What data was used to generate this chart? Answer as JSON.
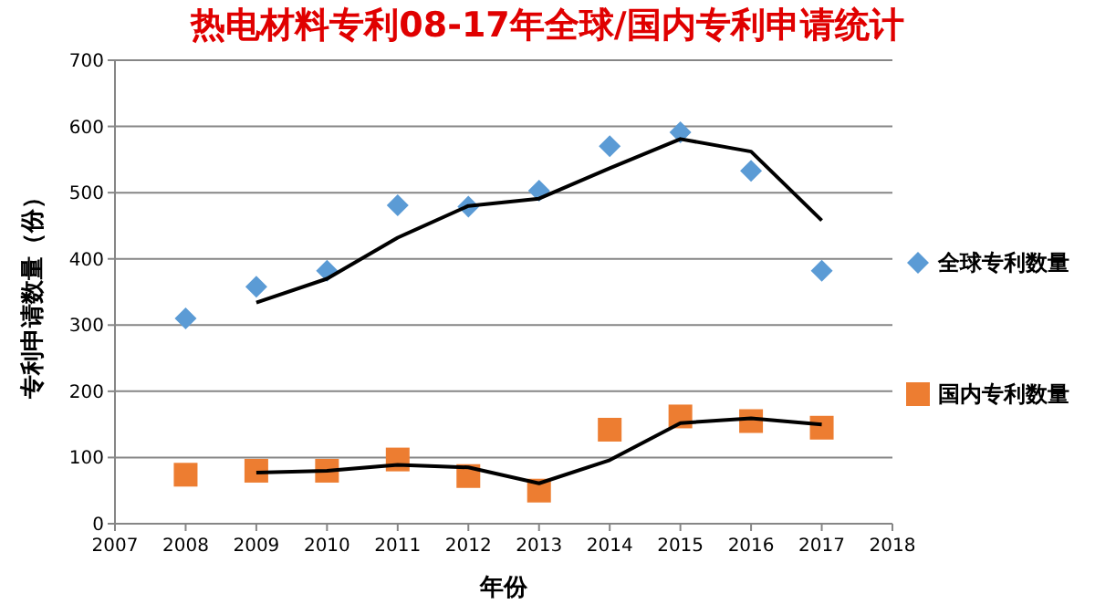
{
  "chart_data": {
    "type": "scatter",
    "title": "热电材料专利08-17年全球/国内专利申请统计",
    "xlabel": "年份",
    "ylabel": "专利申请数量（份）",
    "x": [
      2008,
      2009,
      2010,
      2011,
      2012,
      2013,
      2014,
      2015,
      2016,
      2017
    ],
    "series": [
      {
        "name": "全球专利数量",
        "color": "#5b9bd5",
        "marker": "diamond",
        "values": [
          310,
          358,
          382,
          481,
          479,
          503,
          570,
          591,
          533,
          382
        ]
      },
      {
        "name": "国内专利数量",
        "color": "#ed7d31",
        "marker": "square",
        "values": [
          74,
          80,
          80,
          97,
          72,
          50,
          142,
          162,
          155,
          145
        ]
      },
      {
        "type": "line",
        "color": "#000000",
        "x": [
          2009,
          2010,
          2011,
          2012,
          2013,
          2014,
          2015,
          2016,
          2017
        ],
        "values": [
          334,
          370,
          432,
          480,
          491,
          537,
          581,
          562,
          458
        ]
      },
      {
        "type": "line",
        "color": "#000000",
        "x": [
          2009,
          2010,
          2011,
          2012,
          2013,
          2014,
          2015,
          2016,
          2017
        ],
        "values": [
          77,
          80,
          89,
          85,
          61,
          96,
          152,
          159,
          150
        ]
      }
    ],
    "xlim": [
      2007,
      2018
    ],
    "xticks": [
      2007,
      2008,
      2009,
      2010,
      2011,
      2012,
      2013,
      2014,
      2015,
      2016,
      2017,
      2018
    ],
    "ylim": [
      0,
      700
    ],
    "yticks": [
      0,
      100,
      200,
      300,
      400,
      500,
      600,
      700
    ],
    "grid": "y",
    "legend": "right"
  }
}
